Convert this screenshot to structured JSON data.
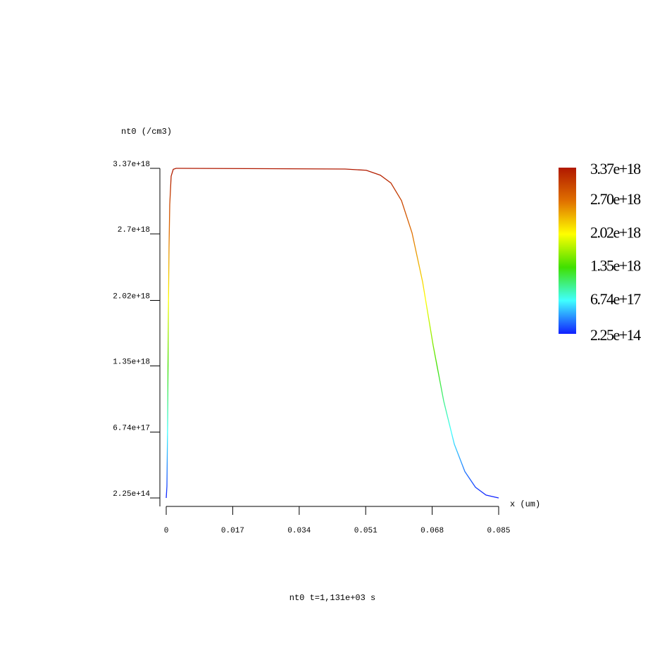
{
  "chart_data": {
    "type": "line",
    "title": "nt0 t=1,131e+03 s",
    "y_label": "nt0 (/cm3)",
    "x_label": "x (um)",
    "x": [
      0,
      0.00018,
      0.00036,
      0.00054,
      0.00072,
      0.0009,
      0.00126,
      0.0018,
      0.00252,
      0.04574,
      0.05114,
      0.05475,
      0.05745,
      0.06015,
      0.06285,
      0.06555,
      0.06825,
      0.07095,
      0.07366,
      0.07636,
      0.07906,
      0.08176,
      0.085
    ],
    "series": [
      {
        "name": "nt0",
        "values": [
          225000000000000.0,
          1.2e+17,
          7.7e+17,
          1.85e+18,
          2.57e+18,
          3e+18,
          3.29e+18,
          3.36e+18,
          3.37e+18,
          3.363e+18,
          3.35e+18,
          3.3e+18,
          3.22e+18,
          3.04e+18,
          2.71e+18,
          2.21e+18,
          1.56e+18,
          9.9e+17,
          5.5e+17,
          2.7e+17,
          1.1e+17,
          3e+16,
          225000000000000.0
        ]
      }
    ],
    "xlim": [
      0,
      0.085
    ],
    "xticks": [
      0,
      0.017,
      0.034,
      0.051,
      0.068,
      0.085
    ],
    "ylim": [
      225000000000000.0,
      3.37e+18
    ],
    "yticks": [
      {
        "value": 225000000000000.0,
        "label": "2.25e+14"
      },
      {
        "value": 6.74e+17,
        "label": "6.74e+17"
      },
      {
        "value": 1.35e+18,
        "label": "1.35e+18"
      },
      {
        "value": 2.02e+18,
        "label": "2.02e+18"
      },
      {
        "value": 2.7e+18,
        "label": "2.7e+18"
      },
      {
        "value": 3.37e+18,
        "label": "3.37e+18"
      }
    ],
    "colormap": [
      "#1020ff",
      "#40ffff",
      "#40e000",
      "#ffff00",
      "#e07000",
      "#b01800"
    ],
    "colorbar_ticks": [
      {
        "value": 3.37e+18,
        "label": "3.37e+18"
      },
      {
        "value": 2.7e+18,
        "label": "2.70e+18"
      },
      {
        "value": 2.02e+18,
        "label": "2.02e+18"
      },
      {
        "value": 1.35e+18,
        "label": "1.35e+18"
      },
      {
        "value": 6.74e+17,
        "label": "6.74e+17"
      },
      {
        "value": 225000000000000.0,
        "label": "2.25e+14"
      }
    ]
  }
}
